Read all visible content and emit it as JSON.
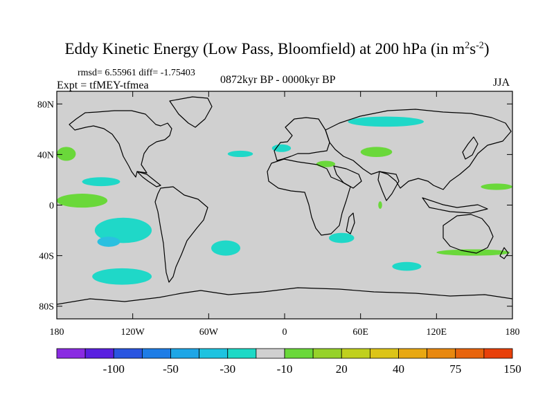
{
  "title": {
    "text": "Eddy Kinetic Energy (Low Pass, Bloomfield) at 200 hPa (in m",
    "sup1": "2",
    "mid": "s",
    "sup2": "-2",
    "end": ")"
  },
  "subtitle": {
    "stats": "rmsd= 6.55961  diff= -1.75403",
    "experiment": "Expt = tfMEY-tfmea",
    "period": "0872kyr BP - 0000kyr BP",
    "season": "JJA"
  },
  "map": {
    "projection": "cylindrical-equidistant",
    "lon_range": [
      -180,
      180
    ],
    "lat_range": [
      -90,
      90
    ],
    "lat_ticks": [
      {
        "value": 80,
        "label": "80N"
      },
      {
        "value": 40,
        "label": "40N"
      },
      {
        "value": 0,
        "label": "0"
      },
      {
        "value": -40,
        "label": "40S"
      },
      {
        "value": -80,
        "label": "80S"
      }
    ],
    "lon_ticks": [
      {
        "value": -180,
        "label": "180"
      },
      {
        "value": -120,
        "label": "120W"
      },
      {
        "value": -60,
        "label": "60W"
      },
      {
        "value": 0,
        "label": "0"
      },
      {
        "value": 60,
        "label": "60E"
      },
      {
        "value": 120,
        "label": "120E"
      },
      {
        "value": 180,
        "label": "180"
      }
    ],
    "background_color": "#d0d0d0",
    "negative_color": "#1fd8c8",
    "negative_strong_color": "#2ac0e0",
    "positive_color": "#6ad83a",
    "anomaly_regions": [
      {
        "name": "central-pacific-south-negative",
        "sign": "negative",
        "lon": [
          -150,
          -105
        ],
        "lat": [
          -30,
          -10
        ]
      },
      {
        "name": "southeast-pacific-strong-negative",
        "sign": "negative-strong",
        "lon": [
          -148,
          -130
        ],
        "lat": [
          -33,
          -25
        ]
      },
      {
        "name": "south-atlantic-negative",
        "sign": "negative",
        "lon": [
          -58,
          -35
        ],
        "lat": [
          -40,
          -28
        ]
      },
      {
        "name": "southern-ocean-pacific-negative",
        "sign": "negative",
        "lon": [
          -152,
          -105
        ],
        "lat": [
          -63,
          -50
        ]
      },
      {
        "name": "southwest-indian-negative",
        "sign": "negative",
        "lon": [
          35,
          55
        ],
        "lat": [
          -30,
          -22
        ]
      },
      {
        "name": "southern-indian-negative",
        "sign": "negative",
        "lon": [
          85,
          108
        ],
        "lat": [
          -52,
          -45
        ]
      },
      {
        "name": "north-pacific-negative",
        "sign": "negative",
        "lon": [
          -160,
          -130
        ],
        "lat": [
          15,
          22
        ]
      },
      {
        "name": "north-atlantic-negative",
        "sign": "negative",
        "lon": [
          -45,
          -25
        ],
        "lat": [
          38,
          43
        ]
      },
      {
        "name": "arctic-siberia-negative",
        "sign": "negative",
        "lon": [
          50,
          110
        ],
        "lat": [
          62,
          70
        ]
      },
      {
        "name": "europe-negative",
        "sign": "negative",
        "lon": [
          -10,
          5
        ],
        "lat": [
          42,
          48
        ]
      },
      {
        "name": "eastern-pacific-positive",
        "sign": "positive",
        "lon": [
          -180,
          -165
        ],
        "lat": [
          35,
          46
        ]
      },
      {
        "name": "equatorial-pacific-positive",
        "sign": "positive",
        "lon": [
          -180,
          -140
        ],
        "lat": [
          -2,
          9
        ]
      },
      {
        "name": "central-asia-positive",
        "sign": "positive",
        "lon": [
          60,
          85
        ],
        "lat": [
          38,
          46
        ]
      },
      {
        "name": "mediterranean-positive",
        "sign": "positive",
        "lon": [
          25,
          40
        ],
        "lat": [
          30,
          35
        ]
      },
      {
        "name": "west-pacific-positive",
        "sign": "positive",
        "lon": [
          155,
          180
        ],
        "lat": [
          12,
          17
        ]
      },
      {
        "name": "east-australia-positive",
        "sign": "positive",
        "lon": [
          120,
          178
        ],
        "lat": [
          -40,
          -35
        ]
      },
      {
        "name": "indian-ocean-positive",
        "sign": "positive",
        "lon": [
          74,
          77
        ],
        "lat": [
          -3,
          3
        ]
      }
    ]
  },
  "colorbar": {
    "colors": [
      "#8a2be2",
      "#5a20e0",
      "#2a55e0",
      "#1e7de6",
      "#1ea6e6",
      "#1ec3e0",
      "#1ed9c6",
      "#d0d0d0",
      "#6ad83a",
      "#96d22a",
      "#c0d01e",
      "#dcc418",
      "#e8a812",
      "#e8880e",
      "#e8640c",
      "#e8400a"
    ],
    "labels": [
      "-100",
      "-50",
      "-30",
      "-10",
      "20",
      "40",
      "75",
      "150"
    ]
  }
}
